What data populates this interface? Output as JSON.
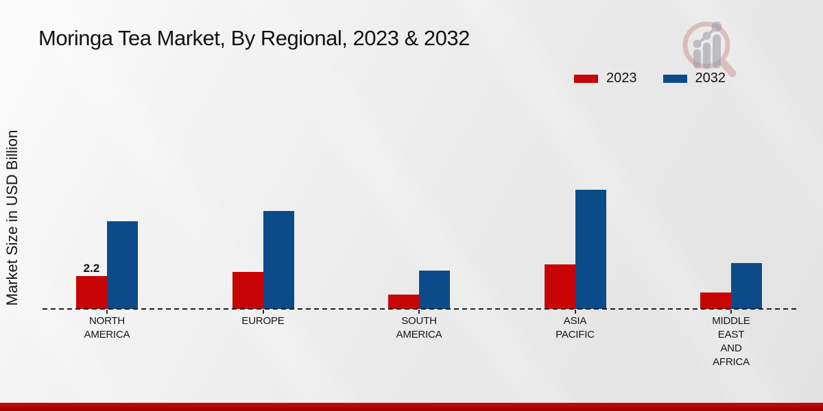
{
  "page": {
    "title": "Moringa Tea Market, By Regional, 2023 & 2032"
  },
  "y_axis": {
    "label": "Market Size in USD Billion"
  },
  "legend": {
    "position": "top-right",
    "items": [
      {
        "label": "2023",
        "color": "#c80404"
      },
      {
        "label": "2032",
        "color": "#0b4b8a"
      }
    ]
  },
  "watermark": {
    "name": "magnifier-bar-chart-logo",
    "ring_color": "#b05050",
    "bars_color": "#9a9aa2"
  },
  "colors": {
    "series_2023": "#c80404",
    "series_2032": "#0b4b8a",
    "baseline": "#1d1d1d",
    "bottom_band": "#b10505",
    "text": "#121212"
  },
  "chart_data": {
    "type": "bar",
    "title": "Moringa Tea Market, By Regional, 2023 & 2032",
    "xlabel": "",
    "ylabel": "Market Size in USD Billion",
    "categories": [
      "NORTH AMERICA",
      "EUROPE",
      "SOUTH AMERICA",
      "ASIA PACIFIC",
      "MIDDLE EAST AND AFRICA"
    ],
    "category_label_lines": [
      [
        "NORTH",
        "AMERICA"
      ],
      [
        "EUROPE"
      ],
      [
        "SOUTH",
        "AMERICA"
      ],
      [
        "ASIA",
        "PACIFIC"
      ],
      [
        "MIDDLE",
        "EAST",
        "AND",
        "AFRICA"
      ]
    ],
    "series": [
      {
        "name": "2023",
        "color": "#c80404",
        "values": [
          2.2,
          2.5,
          0.95,
          3.0,
          1.1
        ]
      },
      {
        "name": "2032",
        "color": "#0b4b8a",
        "values": [
          5.9,
          6.6,
          2.6,
          8.0,
          3.1
        ]
      }
    ],
    "data_labels": [
      {
        "category_index": 0,
        "series_index": 0,
        "text": "2.2"
      }
    ],
    "ylim": [
      0,
      9
    ],
    "grid": false,
    "axis_style": "dashed-baseline-only",
    "legend_position": "top-right"
  }
}
